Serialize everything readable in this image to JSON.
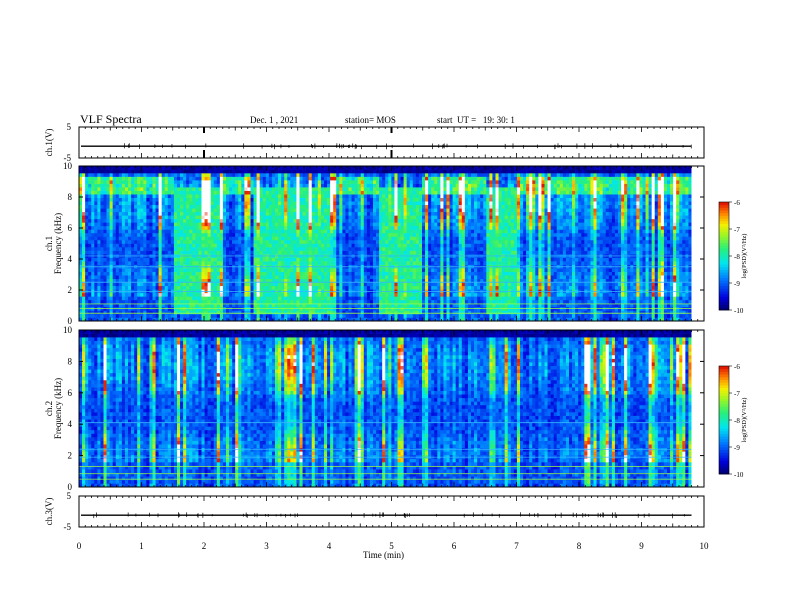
{
  "header": {
    "title": "VLF Spectra",
    "date": "Dec. 1 , 2021",
    "station": "station= MOS",
    "start": "start  UT =   19: 30: 1"
  },
  "chart_data": [
    {
      "type": "line",
      "ylabel": "ch.1(V)",
      "ylim": [
        -5,
        5
      ],
      "yticks": [
        "5",
        "-5"
      ],
      "x": [
        0,
        9.8
      ],
      "series": [
        {
          "values": [
            -1.2,
            -1.2
          ]
        }
      ]
    },
    {
      "type": "heatmap",
      "ylabel": "ch.1\nFrequency (kHz)",
      "ylim": [
        0,
        10
      ],
      "yticks": [
        "0",
        "2",
        "4",
        "6",
        "8",
        "10"
      ],
      "xlim": [
        0,
        9.8
      ],
      "colorbar": {
        "label": "log(PSD)(V²/Hz)",
        "range": [
          -10,
          -6
        ],
        "ticks": [
          "-6",
          "-7",
          "-8",
          "-9",
          "-10"
        ]
      },
      "broadband_intervals_min": [
        [
          1.5,
          2.25
        ],
        [
          2.8,
          3.5
        ],
        [
          3.55,
          4.0
        ],
        [
          4.8,
          5.5
        ],
        [
          6.5,
          7.0
        ]
      ]
    },
    {
      "type": "heatmap",
      "ylabel": "ch.2\nFrequency (kHz)",
      "ylim": [
        0,
        10
      ],
      "yticks": [
        "0",
        "2",
        "4",
        "6",
        "8",
        "10"
      ],
      "xlim": [
        0,
        9.8
      ],
      "colorbar": {
        "label": "log(PSD)(V²/Hz)",
        "range": [
          -10,
          -6
        ],
        "ticks": [
          "-6",
          "-7",
          "-8",
          "-9",
          "-10"
        ]
      }
    },
    {
      "type": "line",
      "ylabel": "ch.3(V)",
      "ylim": [
        -5,
        5
      ],
      "yticks": [
        "5",
        "-5"
      ],
      "x": [
        0,
        9.8
      ],
      "series": [
        {
          "values": [
            -1.2,
            -1.2
          ]
        }
      ]
    }
  ],
  "xaxis": {
    "label": "Time  (min)",
    "ticks": [
      "0",
      "1",
      "2",
      "3",
      "4",
      "5",
      "6",
      "7",
      "8",
      "9",
      "10"
    ],
    "xlim": [
      0,
      10
    ]
  }
}
